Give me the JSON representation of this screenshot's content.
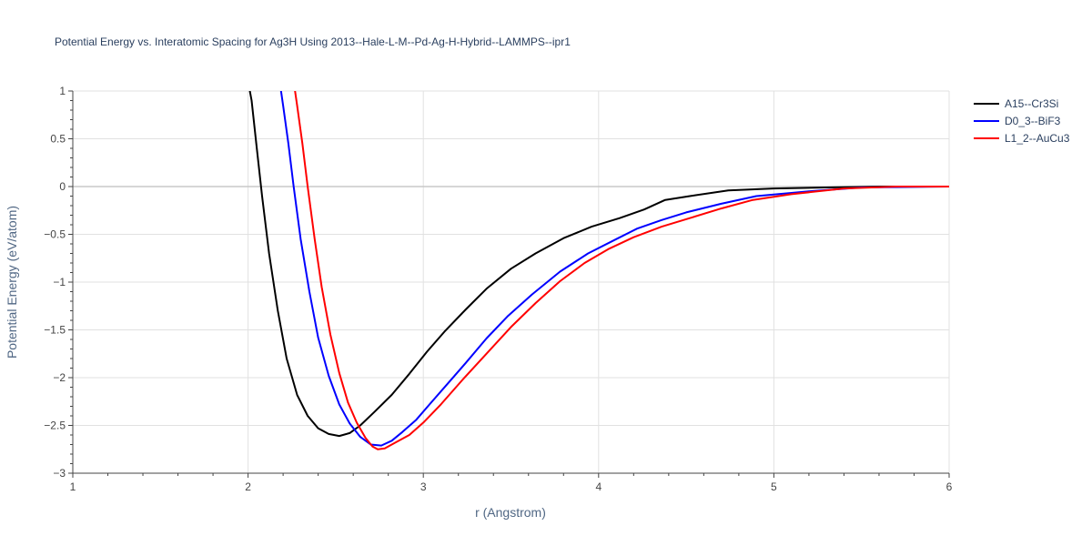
{
  "chart_data": {
    "type": "line",
    "title": "Potential Energy vs. Interatomic Spacing for Ag3H Using 2013--Hale-L-M--Pd-Ag-H-Hybrid--LAMMPS--ipr1",
    "xlabel": "r (Angstrom)",
    "ylabel": "Potential Energy (eV/atom)",
    "xlim": [
      1,
      6
    ],
    "ylim": [
      -3,
      1
    ],
    "x_ticks": [
      1,
      2,
      3,
      4,
      5,
      6
    ],
    "x_tick_labels": [
      "1",
      "2",
      "3",
      "4",
      "5",
      "6"
    ],
    "y_ticks": [
      1,
      0.5,
      0,
      -0.5,
      -1,
      -1.5,
      -2,
      -2.5,
      -3
    ],
    "y_tick_labels": [
      "1",
      "0.5",
      "0",
      "−0.5",
      "−1",
      "−1.5",
      "−2",
      "−2.5",
      "−3"
    ],
    "grid": true,
    "legend_position": "top-right",
    "series": [
      {
        "name": "A15--Cr3Si",
        "color": "#000000",
        "points": [
          [
            2.0,
            1.1
          ],
          [
            2.02,
            0.9
          ],
          [
            2.05,
            0.4
          ],
          [
            2.08,
            -0.1
          ],
          [
            2.12,
            -0.7
          ],
          [
            2.17,
            -1.3
          ],
          [
            2.22,
            -1.8
          ],
          [
            2.28,
            -2.18
          ],
          [
            2.34,
            -2.4
          ],
          [
            2.4,
            -2.53
          ],
          [
            2.46,
            -2.59
          ],
          [
            2.52,
            -2.61
          ],
          [
            2.58,
            -2.58
          ],
          [
            2.64,
            -2.5
          ],
          [
            2.72,
            -2.36
          ],
          [
            2.82,
            -2.18
          ],
          [
            2.92,
            -1.96
          ],
          [
            3.02,
            -1.73
          ],
          [
            3.12,
            -1.52
          ],
          [
            3.24,
            -1.29
          ],
          [
            3.36,
            -1.07
          ],
          [
            3.5,
            -0.86
          ],
          [
            3.64,
            -0.7
          ],
          [
            3.8,
            -0.54
          ],
          [
            3.96,
            -0.42
          ],
          [
            4.12,
            -0.33
          ],
          [
            4.26,
            -0.24
          ],
          [
            4.38,
            -0.14
          ],
          [
            4.52,
            -0.1
          ],
          [
            4.74,
            -0.04
          ],
          [
            5.0,
            -0.02
          ],
          [
            5.3,
            -0.01
          ],
          [
            5.6,
            0.0
          ],
          [
            6.0,
            0.0
          ]
        ]
      },
      {
        "name": "D0_3--BiF3",
        "color": "#0000ff",
        "points": [
          [
            2.18,
            1.1
          ],
          [
            2.2,
            0.85
          ],
          [
            2.23,
            0.45
          ],
          [
            2.26,
            0.0
          ],
          [
            2.3,
            -0.55
          ],
          [
            2.35,
            -1.1
          ],
          [
            2.4,
            -1.58
          ],
          [
            2.46,
            -1.98
          ],
          [
            2.52,
            -2.28
          ],
          [
            2.58,
            -2.48
          ],
          [
            2.64,
            -2.62
          ],
          [
            2.7,
            -2.7
          ],
          [
            2.76,
            -2.71
          ],
          [
            2.82,
            -2.66
          ],
          [
            2.88,
            -2.57
          ],
          [
            2.96,
            -2.44
          ],
          [
            3.04,
            -2.27
          ],
          [
            3.14,
            -2.06
          ],
          [
            3.24,
            -1.85
          ],
          [
            3.36,
            -1.59
          ],
          [
            3.48,
            -1.36
          ],
          [
            3.62,
            -1.13
          ],
          [
            3.78,
            -0.89
          ],
          [
            3.94,
            -0.7
          ],
          [
            4.1,
            -0.55
          ],
          [
            4.22,
            -0.44
          ],
          [
            4.36,
            -0.35
          ],
          [
            4.5,
            -0.27
          ],
          [
            4.7,
            -0.18
          ],
          [
            4.9,
            -0.1
          ],
          [
            5.2,
            -0.05
          ],
          [
            5.5,
            -0.01
          ],
          [
            6.0,
            0.0
          ]
        ]
      },
      {
        "name": "L1_2--AuCu3",
        "color": "#ff0000",
        "points": [
          [
            2.26,
            1.1
          ],
          [
            2.28,
            0.85
          ],
          [
            2.31,
            0.45
          ],
          [
            2.34,
            0.0
          ],
          [
            2.38,
            -0.55
          ],
          [
            2.42,
            -1.05
          ],
          [
            2.47,
            -1.55
          ],
          [
            2.52,
            -1.95
          ],
          [
            2.57,
            -2.26
          ],
          [
            2.62,
            -2.47
          ],
          [
            2.67,
            -2.63
          ],
          [
            2.71,
            -2.72
          ],
          [
            2.74,
            -2.75
          ],
          [
            2.78,
            -2.74
          ],
          [
            2.84,
            -2.68
          ],
          [
            2.92,
            -2.6
          ],
          [
            3.0,
            -2.47
          ],
          [
            3.1,
            -2.28
          ],
          [
            3.22,
            -2.03
          ],
          [
            3.36,
            -1.75
          ],
          [
            3.5,
            -1.47
          ],
          [
            3.64,
            -1.22
          ],
          [
            3.78,
            -0.99
          ],
          [
            3.92,
            -0.8
          ],
          [
            4.06,
            -0.65
          ],
          [
            4.2,
            -0.53
          ],
          [
            4.36,
            -0.42
          ],
          [
            4.52,
            -0.33
          ],
          [
            4.7,
            -0.23
          ],
          [
            4.88,
            -0.14
          ],
          [
            5.1,
            -0.08
          ],
          [
            5.4,
            -0.02
          ],
          [
            5.7,
            0.0
          ],
          [
            6.0,
            0.0
          ]
        ]
      }
    ]
  }
}
